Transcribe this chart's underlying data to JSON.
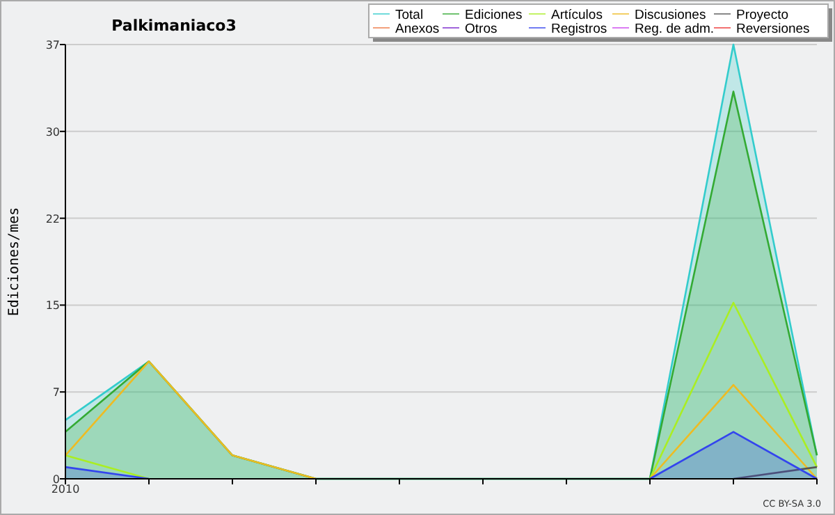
{
  "chart_data": {
    "type": "line",
    "title": "Palkimaniaco3",
    "ylabel": "Ediciones/mes",
    "categories": [
      "2010",
      null,
      null,
      null,
      null,
      null,
      null,
      null,
      null,
      null
    ],
    "ylim": [
      0,
      37
    ],
    "yticks": [
      0,
      {
        "value": 7.4,
        "label": "7"
      },
      {
        "value": 14.8,
        "label": "15"
      },
      {
        "value": 22.2,
        "label": "22"
      },
      {
        "value": 29.6,
        "label": "30"
      },
      37
    ],
    "grid": "y",
    "legend": "top right",
    "annotations": [
      "CC BY-SA 3.0"
    ],
    "series": [
      {
        "name": "Total",
        "type": "area",
        "color": "#33cccc",
        "values": [
          5,
          10,
          2,
          0,
          0,
          0,
          0,
          0,
          37,
          2
        ]
      },
      {
        "name": "Ediciones",
        "type": "area",
        "color": "#33aa33",
        "values": [
          4,
          10,
          2,
          0,
          0,
          0,
          0,
          0,
          33,
          2
        ]
      },
      {
        "name": "Artículos",
        "color": "#aaee22",
        "values": [
          2,
          0,
          null,
          null,
          null,
          null,
          null,
          0,
          15,
          1
        ]
      },
      {
        "name": "Discusiones",
        "color": "#eebb22",
        "values": [
          2,
          10,
          2,
          0,
          null,
          null,
          null,
          0,
          8,
          0
        ]
      },
      {
        "name": "Proyecto",
        "color": "#555555",
        "values": [
          null,
          null,
          null,
          null,
          null,
          null,
          null,
          null,
          0,
          1
        ]
      },
      {
        "name": "Anexos",
        "color": "#ee7744",
        "values": [
          null,
          null,
          null,
          null,
          null,
          null,
          null,
          null,
          null,
          null
        ]
      },
      {
        "name": "Otros",
        "color": "#7722cc",
        "values": [
          null,
          null,
          null,
          null,
          null,
          null,
          null,
          null,
          null,
          null
        ]
      },
      {
        "name": "Registros",
        "type": "area",
        "color": "#3344ee",
        "values": [
          1,
          0,
          null,
          null,
          null,
          null,
          null,
          0,
          4,
          0
        ]
      },
      {
        "name": "Reg. de adm.",
        "color": "#cc44ee",
        "values": [
          null,
          null,
          null,
          null,
          null,
          null,
          null,
          null,
          null,
          null
        ]
      },
      {
        "name": "Reversiones",
        "color": "#ee3333",
        "values": [
          null,
          null,
          null,
          null,
          null,
          null,
          null,
          null,
          null,
          null
        ]
      }
    ]
  }
}
